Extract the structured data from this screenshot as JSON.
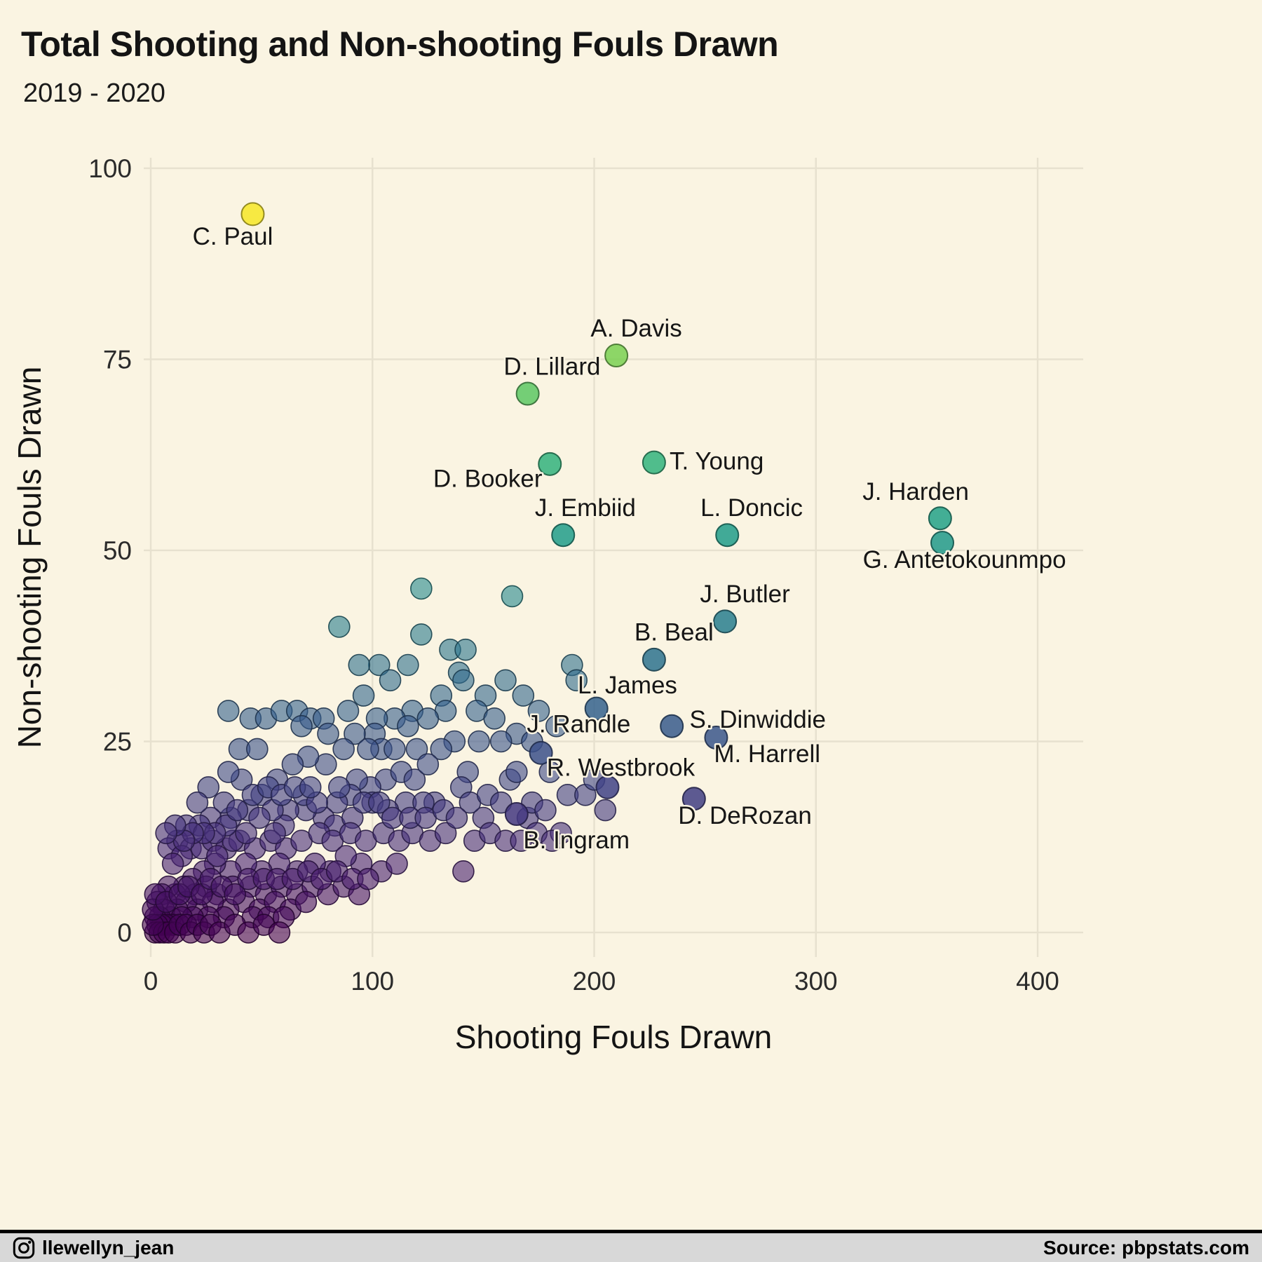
{
  "header": {
    "title": "Total Shooting and Non-shooting Fouls Drawn",
    "subtitle": "2019 - 2020"
  },
  "footer": {
    "instagram_icon": "instagram-logo",
    "instagram_handle": "llewellyn_jean",
    "source": "Source: pbpstats.com"
  },
  "chart_data": {
    "type": "scatter",
    "title": "Total Shooting and Non-shooting Fouls Drawn",
    "subtitle": "2019 - 2020",
    "xlabel": "Shooting Fouls Drawn",
    "ylabel": "Non-shooting Fouls Drawn",
    "xlim": [
      0,
      400
    ],
    "ylim": [
      0,
      100
    ],
    "xticks": [
      0,
      100,
      200,
      300,
      400
    ],
    "yticks": [
      0,
      25,
      50,
      75,
      100
    ],
    "grid": true,
    "legend": "none",
    "background_color": "#faf4e2",
    "gridline_color": "#e7e1cf",
    "color_scale": {
      "palette": "viridis",
      "maps_to": "y",
      "domain": [
        0,
        95
      ]
    },
    "labeled_points": [
      {
        "name": "C. Paul",
        "x": 46,
        "y": 94,
        "lx": 37,
        "ly": 90,
        "anchor": "middle"
      },
      {
        "name": "A. Davis",
        "x": 210,
        "y": 75.5,
        "lx": 219,
        "ly": 78,
        "anchor": "middle"
      },
      {
        "name": "D. Lillard",
        "x": 170,
        "y": 70.5,
        "lx": 181,
        "ly": 73,
        "anchor": "middle"
      },
      {
        "name": "T. Young",
        "x": 227,
        "y": 61.5,
        "lx": 234,
        "ly": 60.6,
        "anchor": "start"
      },
      {
        "name": "D. Booker",
        "x": 180,
        "y": 61.3,
        "lx": 152,
        "ly": 58.3,
        "anchor": "middle"
      },
      {
        "name": "J. Embiid",
        "x": 186,
        "y": 52,
        "lx": 196,
        "ly": 54.5,
        "anchor": "middle"
      },
      {
        "name": "L. Doncic",
        "x": 260,
        "y": 52,
        "lx": 271,
        "ly": 54.5,
        "anchor": "middle"
      },
      {
        "name": "J. Harden",
        "x": 356,
        "y": 54.2,
        "lx": 345,
        "ly": 56.6,
        "anchor": "middle"
      },
      {
        "name": "G. Antetokounmpo",
        "x": 357,
        "y": 51,
        "lx": 367,
        "ly": 47.7,
        "anchor": "middle"
      },
      {
        "name": "J. Butler",
        "x": 259,
        "y": 40.7,
        "lx": 268,
        "ly": 43.2,
        "anchor": "middle"
      },
      {
        "name": "B. Beal",
        "x": 227,
        "y": 35.7,
        "lx": 236,
        "ly": 38.2,
        "anchor": "middle"
      },
      {
        "name": "L. James",
        "x": 201,
        "y": 29.3,
        "lx": 215,
        "ly": 31.3,
        "anchor": "middle"
      },
      {
        "name": "J. Randle",
        "x": 176,
        "y": 23.5,
        "lx": 193,
        "ly": 26.2,
        "anchor": "middle"
      },
      {
        "name": "S. Dinwiddie",
        "x": 235,
        "y": 27,
        "lx": 243,
        "ly": 26.8,
        "anchor": "start"
      },
      {
        "name": "M. Harrell",
        "x": 255,
        "y": 25.5,
        "lx": 278,
        "ly": 22.3,
        "anchor": "middle"
      },
      {
        "name": "R. Westbrook",
        "x": 206,
        "y": 19,
        "lx": 212,
        "ly": 20.5,
        "anchor": "middle"
      },
      {
        "name": "D. DeRozan",
        "x": 245,
        "y": 17.5,
        "lx": 268,
        "ly": 14.2,
        "anchor": "middle"
      },
      {
        "name": "B. Ingram",
        "x": 165,
        "y": 15.5,
        "lx": 192,
        "ly": 11,
        "anchor": "middle"
      }
    ],
    "points": [
      [
        122,
        45
      ],
      [
        163,
        44
      ],
      [
        85,
        40
      ],
      [
        122,
        39
      ],
      [
        135,
        37
      ],
      [
        142,
        37
      ],
      [
        190,
        35
      ],
      [
        103,
        35
      ],
      [
        139,
        34
      ],
      [
        141,
        33
      ],
      [
        160,
        33
      ],
      [
        192,
        33
      ],
      [
        151,
        31
      ],
      [
        131,
        31
      ],
      [
        118,
        29
      ],
      [
        133,
        29
      ],
      [
        125,
        28
      ],
      [
        110,
        28
      ],
      [
        102,
        28
      ],
      [
        96,
        31
      ],
      [
        108,
        33
      ],
      [
        116,
        35
      ],
      [
        94,
        35
      ],
      [
        168,
        31
      ],
      [
        175,
        29
      ],
      [
        147,
        29
      ],
      [
        155,
        28
      ],
      [
        183,
        27
      ],
      [
        101,
        26
      ],
      [
        148,
        25
      ],
      [
        137,
        25
      ],
      [
        165,
        26
      ],
      [
        158,
        25
      ],
      [
        172,
        25
      ],
      [
        131,
        24
      ],
      [
        180,
        21
      ],
      [
        188,
        18
      ],
      [
        196,
        18
      ],
      [
        200,
        20
      ],
      [
        205,
        16
      ],
      [
        45,
        28
      ],
      [
        52,
        28
      ],
      [
        59,
        29
      ],
      [
        66,
        29
      ],
      [
        72,
        28
      ],
      [
        78,
        28
      ],
      [
        89,
        29
      ],
      [
        35,
        29
      ],
      [
        68,
        27
      ],
      [
        80,
        26
      ],
      [
        92,
        26
      ],
      [
        104,
        24
      ],
      [
        116,
        27
      ],
      [
        120,
        24
      ],
      [
        110,
        24
      ],
      [
        98,
        24
      ],
      [
        87,
        24
      ],
      [
        79,
        22
      ],
      [
        71,
        23
      ],
      [
        64,
        22
      ],
      [
        57,
        20
      ],
      [
        50,
        18
      ],
      [
        44,
        16
      ],
      [
        36,
        15
      ],
      [
        143,
        21
      ],
      [
        162,
        20
      ],
      [
        140,
        19
      ],
      [
        128,
        17
      ],
      [
        115,
        17
      ],
      [
        123,
        17
      ],
      [
        170,
        15
      ],
      [
        150,
        15
      ],
      [
        144,
        17
      ],
      [
        152,
        18
      ],
      [
        158,
        17
      ],
      [
        165,
        21
      ],
      [
        172,
        17
      ],
      [
        178,
        16
      ],
      [
        185,
        13
      ],
      [
        106,
        20
      ],
      [
        113,
        21
      ],
      [
        119,
        20
      ],
      [
        125,
        22
      ],
      [
        99,
        19
      ],
      [
        93,
        20
      ],
      [
        100,
        17
      ],
      [
        107,
        16
      ],
      [
        90,
        18
      ],
      [
        84,
        17
      ],
      [
        78,
        15
      ],
      [
        70,
        16
      ],
      [
        62,
        16
      ],
      [
        69,
        18
      ],
      [
        75,
        17
      ],
      [
        83,
        14
      ],
      [
        91,
        15
      ],
      [
        60,
        14
      ],
      [
        55,
        16
      ],
      [
        49,
        15
      ],
      [
        41,
        20
      ],
      [
        35,
        21
      ],
      [
        40,
        24
      ],
      [
        48,
        24
      ],
      [
        33,
        17
      ],
      [
        27,
        15
      ],
      [
        26,
        19
      ],
      [
        21,
        17
      ],
      [
        22,
        14
      ],
      [
        16,
        14
      ],
      [
        12,
        12
      ],
      [
        8,
        11
      ],
      [
        18,
        11
      ],
      [
        14,
        10
      ],
      [
        10,
        9
      ],
      [
        23,
        11
      ],
      [
        28,
        12
      ],
      [
        34,
        11
      ],
      [
        40,
        12
      ],
      [
        47,
        11
      ],
      [
        54,
        12
      ],
      [
        61,
        11
      ],
      [
        68,
        12
      ],
      [
        76,
        13
      ],
      [
        82,
        12
      ],
      [
        90,
        13
      ],
      [
        97,
        12
      ],
      [
        104,
        8
      ],
      [
        111,
        9
      ],
      [
        105,
        13
      ],
      [
        112,
        12
      ],
      [
        118,
        13
      ],
      [
        126,
        12
      ],
      [
        133,
        13
      ],
      [
        141,
        8
      ],
      [
        95,
        9
      ],
      [
        88,
        10
      ],
      [
        81,
        8
      ],
      [
        74,
        9
      ],
      [
        66,
        8
      ],
      [
        58,
        9
      ],
      [
        50,
        8
      ],
      [
        43,
        9
      ],
      [
        36,
        8
      ],
      [
        29,
        9
      ],
      [
        24,
        8
      ],
      [
        19,
        7
      ],
      [
        30,
        10
      ],
      [
        37,
        12
      ],
      [
        43,
        13
      ],
      [
        56,
        13
      ],
      [
        45,
        6
      ],
      [
        52,
        5
      ],
      [
        59,
        6
      ],
      [
        66,
        5
      ],
      [
        73,
        6
      ],
      [
        80,
        5
      ],
      [
        87,
        6
      ],
      [
        94,
        5
      ],
      [
        30,
        5
      ],
      [
        37,
        6
      ],
      [
        25,
        6
      ],
      [
        20,
        5
      ],
      [
        15,
        6
      ],
      [
        11,
        5
      ],
      [
        8,
        6
      ],
      [
        5,
        5
      ],
      [
        3,
        4
      ],
      [
        42,
        4
      ],
      [
        49,
        3
      ],
      [
        56,
        4
      ],
      [
        63,
        3
      ],
      [
        70,
        4
      ],
      [
        35,
        3
      ],
      [
        28,
        4
      ],
      [
        21,
        3
      ],
      [
        16,
        4
      ],
      [
        12,
        3
      ],
      [
        9,
        2
      ],
      [
        6,
        3
      ],
      [
        4,
        2
      ],
      [
        2,
        2
      ],
      [
        46,
        2
      ],
      [
        53,
        2
      ],
      [
        60,
        2
      ],
      [
        33,
        2
      ],
      [
        26,
        2
      ],
      [
        19,
        2
      ],
      [
        14,
        2
      ],
      [
        10,
        1
      ],
      [
        7,
        1
      ],
      [
        5,
        1
      ],
      [
        3,
        1
      ],
      [
        2,
        0
      ],
      [
        4,
        0
      ],
      [
        6,
        0
      ],
      [
        8,
        0
      ],
      [
        11,
        0
      ],
      [
        13,
        1
      ],
      [
        16,
        1
      ],
      [
        18,
        0
      ],
      [
        21,
        1
      ],
      [
        24,
        0
      ],
      [
        27,
        1
      ],
      [
        31,
        0
      ],
      [
        38,
        1
      ],
      [
        44,
        0
      ],
      [
        51,
        1
      ],
      [
        58,
        0
      ],
      [
        1,
        1
      ],
      [
        1,
        3
      ],
      [
        2,
        5
      ],
      [
        7,
        4
      ],
      [
        13,
        5
      ],
      [
        17,
        6
      ],
      [
        23,
        5
      ],
      [
        27,
        7
      ],
      [
        32,
        6
      ],
      [
        38,
        5
      ],
      [
        44,
        7
      ],
      [
        51,
        7
      ],
      [
        57,
        7
      ],
      [
        64,
        7
      ],
      [
        71,
        8
      ],
      [
        77,
        7
      ],
      [
        84,
        8
      ],
      [
        91,
        7
      ],
      [
        98,
        7
      ],
      [
        34,
        14
      ],
      [
        29,
        13
      ],
      [
        24,
        13
      ],
      [
        19,
        13
      ],
      [
        15,
        12
      ],
      [
        11,
        14
      ],
      [
        7,
        13
      ],
      [
        39,
        16
      ],
      [
        46,
        18
      ],
      [
        53,
        19
      ],
      [
        59,
        18
      ],
      [
        65,
        19
      ],
      [
        72,
        19
      ],
      [
        85,
        19
      ],
      [
        96,
        17
      ],
      [
        103,
        17
      ],
      [
        109,
        15
      ],
      [
        117,
        15
      ],
      [
        124,
        15
      ],
      [
        132,
        16
      ],
      [
        138,
        15
      ],
      [
        146,
        12
      ],
      [
        153,
        13
      ],
      [
        160,
        12
      ],
      [
        167,
        12
      ],
      [
        174,
        13
      ],
      [
        181,
        12
      ]
    ]
  }
}
